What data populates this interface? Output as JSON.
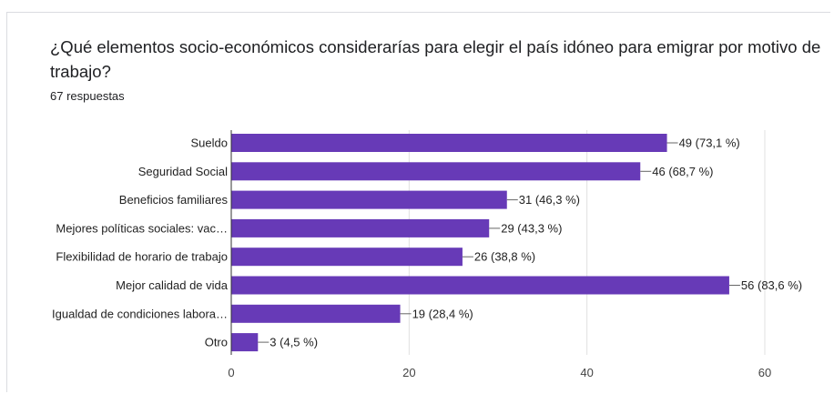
{
  "question": {
    "title": "¿Qué elementos socio-económicos considerarías para elegir el país idóneo para emigrar por motivo de trabajo?",
    "responses": "67 respuestas"
  },
  "colors": {
    "bar": "#673ab7",
    "grid": "#e0e0e0",
    "axis": "#333333",
    "label": "#222222"
  },
  "chart_data": {
    "type": "bar",
    "orientation": "horizontal",
    "categories": [
      "Sueldo",
      "Seguridad Social",
      "Beneficios familiares",
      "Mejores políticas sociales: vac…",
      "Flexibilidad de horario de trabajo",
      "Mejor calidad de vida",
      "Igualdad de condiciones labora…",
      "Otro"
    ],
    "values": [
      49,
      46,
      31,
      29,
      26,
      56,
      19,
      3
    ],
    "data_labels": [
      "49 (73,1 %)",
      "46 (68,7 %)",
      "31 (46,3 %)",
      "29 (43,3 %)",
      "26 (38,8 %)",
      "56 (83,6 %)",
      "19 (28,4 %)",
      "3 (4,5 %)"
    ],
    "xlim": [
      0,
      60
    ],
    "xticks": [
      0,
      20,
      40,
      60
    ],
    "grid": true,
    "legend": "none"
  }
}
